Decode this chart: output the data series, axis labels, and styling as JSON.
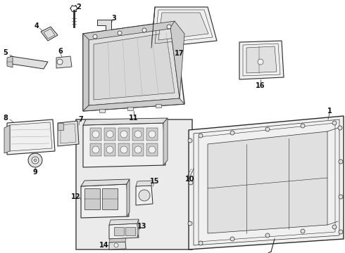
{
  "bg": "#ffffff",
  "lc": "#2a2a2a",
  "fc_light": "#f0f0f0",
  "fc_med": "#e0e0e0",
  "fc_dark": "#cccccc",
  "box_fc": "#ebebeb",
  "box_ec": "#555555",
  "fig_w": 4.9,
  "fig_h": 3.6,
  "dpi": 100,
  "font_size": 7.0,
  "text_color": "#111111"
}
